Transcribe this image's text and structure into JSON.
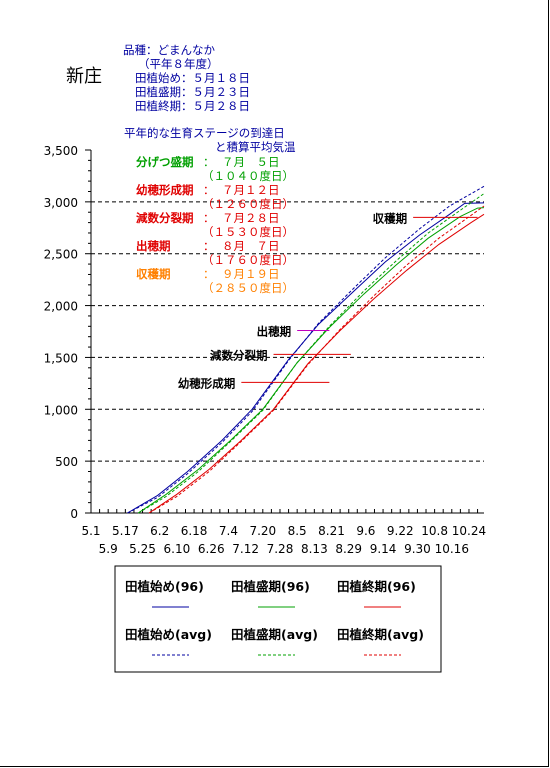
{
  "header": {
    "place": "新庄",
    "variety": "品種：どまんなか",
    "year": "（平年８年度）",
    "plant_start": "田植始め：５月１８日",
    "plant_peak": "田植盛期：５月２３日",
    "plant_end": "田植終期：５月２８日"
  },
  "notes": {
    "stage_title": "平年的な生育ステージの到達日",
    "temp_note": "と積算平均気温",
    "stages": [
      {
        "name": "分げつ盛期",
        "sep": "：",
        "date": "７月　５日",
        "dd": "（１０４０度日）",
        "color": "#00a000"
      },
      {
        "name": "幼穂形成期",
        "sep": "：",
        "date": "７月１２日",
        "dd": "（１２６０度日）",
        "color": "#e00000"
      },
      {
        "name": "減数分裂期",
        "sep": "：",
        "date": "７月２８日",
        "dd": "（１５３０度日）",
        "color": "#e00000"
      },
      {
        "name": "出穂期",
        "sep": "：",
        "date": "８月　７日",
        "dd": "（１７６０度日）",
        "color": "#e00000"
      },
      {
        "name": "収穫期",
        "sep": "：",
        "date": "９月１９日",
        "dd": "（２８５０度日）",
        "color": "#ff8000"
      }
    ]
  },
  "chart_data": {
    "type": "line",
    "ylim": [
      0,
      3500
    ],
    "yticks": [
      0,
      500,
      1000,
      1500,
      2000,
      2500,
      3000,
      3500
    ],
    "ytick_labels": [
      "0",
      "500",
      "1,000",
      "1,500",
      "2,000",
      "2,500",
      "3,000",
      "3,500"
    ],
    "grid": "horizontal dashed",
    "xlim": [
      "5.1",
      "10.31"
    ],
    "xtick_labels_top": [
      "5.1",
      "5.17",
      "6.2",
      "6.18",
      "7.4",
      "7.20",
      "8.5",
      "8.21",
      "9.6",
      "9.22",
      "10.8",
      "10.24"
    ],
    "xtick_labels_bottom": [
      "5.9",
      "5.25",
      "6.10",
      "6.26",
      "7.12",
      "7.28",
      "8.13",
      "8.29",
      "9.14",
      "9.30",
      "10.16"
    ],
    "series": [
      {
        "name": "田植始め(96)",
        "color": "#0000a0",
        "dash": "solid",
        "start": "5.18",
        "points": [
          [
            "5.18",
            0
          ],
          [
            "6.1",
            170
          ],
          [
            "6.15",
            400
          ],
          [
            "7.1",
            700
          ],
          [
            "7.15",
            1000
          ],
          [
            "8.1",
            1480
          ],
          [
            "8.15",
            1820
          ],
          [
            "9.1",
            2150
          ],
          [
            "9.15",
            2420
          ],
          [
            "10.1",
            2680
          ],
          [
            "10.15",
            2880
          ],
          [
            "10.22",
            2985
          ],
          [
            "10.31",
            2990
          ]
        ]
      },
      {
        "name": "田植盛期(96)",
        "color": "#00a000",
        "dash": "solid",
        "start": "5.23",
        "points": [
          [
            "5.23",
            0
          ],
          [
            "6.5",
            180
          ],
          [
            "6.20",
            420
          ],
          [
            "7.5",
            700
          ],
          [
            "7.20",
            1000
          ],
          [
            "8.5",
            1450
          ],
          [
            "8.20",
            1790
          ],
          [
            "9.5",
            2110
          ],
          [
            "9.20",
            2390
          ],
          [
            "10.5",
            2650
          ],
          [
            "10.20",
            2860
          ],
          [
            "10.28",
            2940
          ],
          [
            "10.31",
            2945
          ]
        ]
      },
      {
        "name": "田植終期(96)",
        "color": "#e00000",
        "dash": "solid",
        "start": "5.28",
        "points": [
          [
            "5.28",
            0
          ],
          [
            "6.10",
            180
          ],
          [
            "6.25",
            420
          ],
          [
            "7.10",
            700
          ],
          [
            "7.25",
            1000
          ],
          [
            "8.10",
            1440
          ],
          [
            "8.25",
            1760
          ],
          [
            "9.10",
            2070
          ],
          [
            "9.25",
            2340
          ],
          [
            "10.10",
            2590
          ],
          [
            "10.25",
            2800
          ],
          [
            "10.31",
            2880
          ]
        ]
      },
      {
        "name": "田植始め(avg)",
        "color": "#0000a0",
        "dash": "dashed",
        "start": "5.18",
        "points": [
          [
            "5.18",
            0
          ],
          [
            "6.1",
            150
          ],
          [
            "6.15",
            380
          ],
          [
            "7.1",
            680
          ],
          [
            "7.15",
            980
          ],
          [
            "8.1",
            1470
          ],
          [
            "8.15",
            1830
          ],
          [
            "9.1",
            2180
          ],
          [
            "9.15",
            2460
          ],
          [
            "10.1",
            2740
          ],
          [
            "10.15",
            2960
          ],
          [
            "10.31",
            3150
          ]
        ]
      },
      {
        "name": "田植盛期(avg)",
        "color": "#00a000",
        "dash": "dashed",
        "start": "5.23",
        "points": [
          [
            "5.23",
            0
          ],
          [
            "6.5",
            160
          ],
          [
            "6.20",
            400
          ],
          [
            "7.5",
            690
          ],
          [
            "7.20",
            990
          ],
          [
            "8.5",
            1450
          ],
          [
            "8.20",
            1800
          ],
          [
            "9.5",
            2140
          ],
          [
            "9.20",
            2430
          ],
          [
            "10.5",
            2700
          ],
          [
            "10.20",
            2920
          ],
          [
            "10.31",
            3080
          ]
        ]
      },
      {
        "name": "田植終期(avg)",
        "color": "#e00000",
        "dash": "dashed",
        "start": "5.28",
        "points": [
          [
            "5.28",
            0
          ],
          [
            "6.10",
            160
          ],
          [
            "6.25",
            400
          ],
          [
            "7.10",
            690
          ],
          [
            "7.25",
            990
          ],
          [
            "8.10",
            1430
          ],
          [
            "8.25",
            1770
          ],
          [
            "9.10",
            2100
          ],
          [
            "9.25",
            2390
          ],
          [
            "10.10",
            2650
          ],
          [
            "10.25",
            2870
          ],
          [
            "10.31",
            2960
          ]
        ]
      }
    ],
    "stage_markers": [
      {
        "label": "幼穂形成期",
        "dd": 1260,
        "x_from": "7.10",
        "x_to": "8.20",
        "color": "#e00000"
      },
      {
        "label": "減数分裂期",
        "dd": 1530,
        "x_from": "7.25",
        "x_to": "8.30",
        "color": "#e00000"
      },
      {
        "label": "出穂期",
        "dd": 1760,
        "x_from": "8.5",
        "x_to": "8.20",
        "color": "#c000c0"
      },
      {
        "label": "収穫期",
        "dd": 2850,
        "x_from": "9.28",
        "x_to": "10.28",
        "color": "#e00000"
      }
    ]
  }
}
